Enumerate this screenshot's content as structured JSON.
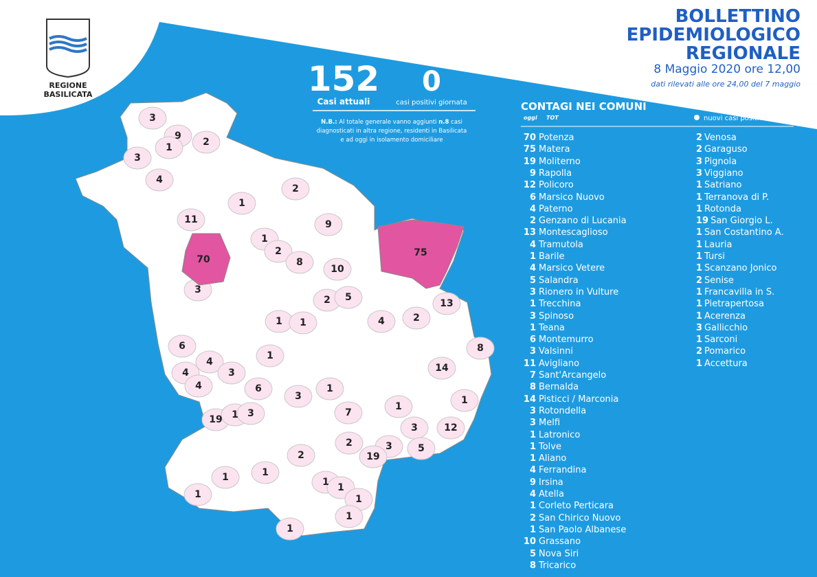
{
  "logo": {
    "line1": "REGIONE",
    "line2": "BASILICATA"
  },
  "header": {
    "title1": "BOLLETTINO",
    "title2": "EPIDEMIOLOGICO",
    "title3": "REGIONALE",
    "date": "8 Maggio 2020 ore 12,00",
    "note": "dati rilevati alle ore 24,00 del 7 maggio"
  },
  "stats": {
    "current": 152,
    "current_label": "Casi attuali",
    "daily": 0,
    "daily_label": "casi positivi giornata"
  },
  "note": {
    "lead": "N.B.:",
    "before": "Al totale generale vanno aggiunti",
    "count": "n.8",
    "after": "casi",
    "line2": "diagnosticati in altra regione, residenti in Basilicata",
    "line3": "e ad oggi in isolamento domiciliare"
  },
  "list_header": {
    "title": "CONTAGI NEI COMUNI",
    "oggi": "oggi",
    "tot": "TOT",
    "legend": "nuovi casi positivi"
  },
  "comuni_col1": [
    [
      70,
      "Potenza"
    ],
    [
      75,
      "Matera"
    ],
    [
      19,
      "Moliterno"
    ],
    [
      9,
      "Rapolla"
    ],
    [
      12,
      "Policoro"
    ],
    [
      6,
      "Marsico Nuovo"
    ],
    [
      4,
      "Paterno"
    ],
    [
      2,
      "Genzano di Lucania"
    ],
    [
      13,
      "Montescaglioso"
    ],
    [
      4,
      "Tramutola"
    ],
    [
      1,
      "Barile"
    ],
    [
      4,
      "Marsico Vetere"
    ],
    [
      5,
      "Salandra"
    ],
    [
      3,
      "Rionero in Vulture"
    ],
    [
      1,
      "Trecchina"
    ],
    [
      3,
      "Spinoso"
    ],
    [
      1,
      "Teana"
    ],
    [
      6,
      "Montemurro"
    ],
    [
      3,
      "Valsinni"
    ],
    [
      11,
      "Avigliano"
    ],
    [
      7,
      "Sant'Arcangelo"
    ],
    [
      8,
      "Bernalda"
    ],
    [
      14,
      "Pisticci / Marconia"
    ],
    [
      3,
      "Rotondella"
    ],
    [
      3,
      "Melfi"
    ],
    [
      1,
      "Latronico"
    ],
    [
      1,
      "Tolve"
    ],
    [
      1,
      "Aliano"
    ],
    [
      4,
      "Ferrandina"
    ],
    [
      9,
      "Irsina"
    ],
    [
      4,
      "Atella"
    ],
    [
      1,
      "Corleto Perticara"
    ],
    [
      2,
      "San Chirico Nuovo"
    ],
    [
      1,
      "San Paolo Albanese"
    ],
    [
      10,
      "Grassano"
    ],
    [
      5,
      "Nova Siri"
    ],
    [
      8,
      "Tricarico"
    ]
  ],
  "comuni_col2": [
    [
      2,
      "Venosa"
    ],
    [
      2,
      "Garaguso"
    ],
    [
      3,
      "Pignola"
    ],
    [
      3,
      "Viggiano"
    ],
    [
      1,
      "Satriano"
    ],
    [
      1,
      "Terranova di P."
    ],
    [
      1,
      "Rotonda"
    ],
    [
      19,
      "San Giorgio L."
    ],
    [
      1,
      "San Costantino A."
    ],
    [
      1,
      "Lauria"
    ],
    [
      1,
      "Tursi"
    ],
    [
      1,
      "Scanzano Jonico"
    ],
    [
      2,
      "Senise"
    ],
    [
      1,
      "Francavilla in S."
    ],
    [
      1,
      "Pietrapertosa"
    ],
    [
      1,
      "Acerenza"
    ],
    [
      3,
      "Gallicchio"
    ],
    [
      1,
      "Sarconi"
    ],
    [
      2,
      "Pomarico"
    ],
    [
      1,
      "Accettura"
    ]
  ],
  "map": {
    "labels": [
      3,
      9,
      1,
      2,
      3,
      4,
      2,
      1,
      11,
      9,
      1,
      2,
      70,
      8,
      75,
      10,
      3,
      2,
      5,
      13,
      1,
      1,
      4,
      2,
      8,
      6,
      1,
      4,
      14,
      4,
      3,
      4,
      6,
      3,
      1,
      1,
      1,
      19,
      1,
      3,
      7,
      3,
      12,
      2,
      3,
      5,
      19,
      2,
      1,
      1,
      1,
      1,
      1,
      1,
      1,
      1
    ]
  }
}
